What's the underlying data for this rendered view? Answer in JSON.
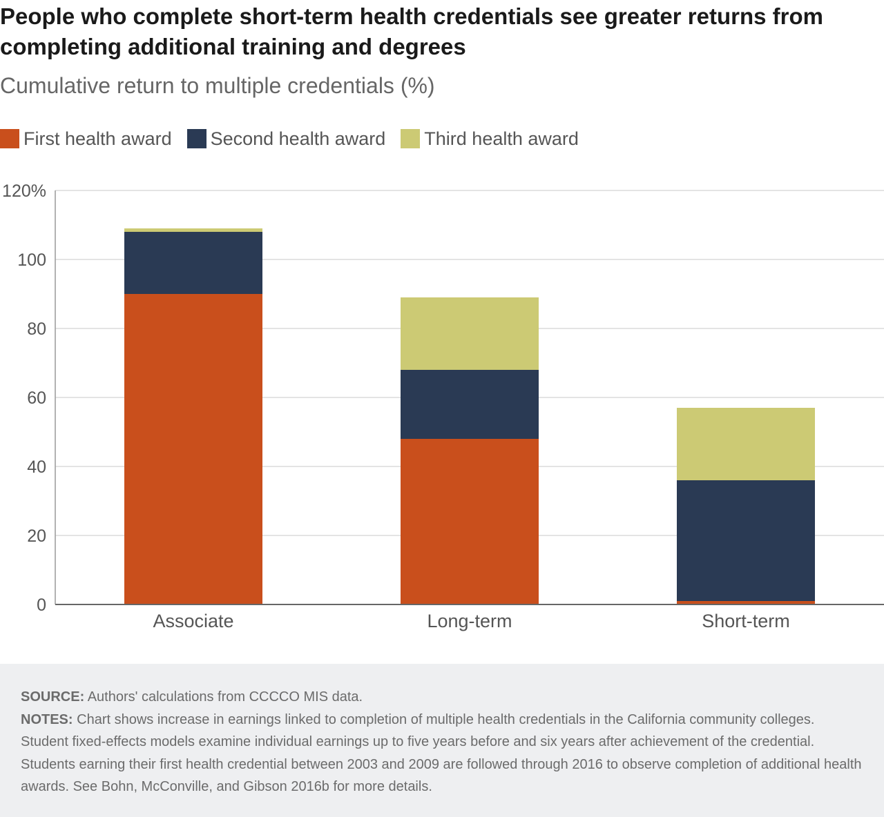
{
  "header": {
    "title": "People who complete short-term health credentials see greater returns from completing additional training and degrees",
    "subtitle": "Cumulative return to multiple credentials (%)"
  },
  "chart_data": {
    "type": "bar",
    "stacked": true,
    "categories": [
      "Associate",
      "Long-term",
      "Short-term"
    ],
    "series": [
      {
        "name": "First health award",
        "color": "#c94f1c",
        "values": [
          90,
          48,
          1
        ]
      },
      {
        "name": "Second health award",
        "color": "#2a3a54",
        "values": [
          18,
          20,
          35
        ]
      },
      {
        "name": "Third health award",
        "color": "#ccca74",
        "values": [
          1,
          21,
          21
        ]
      }
    ],
    "ylim": [
      0,
      120
    ],
    "yticks": [
      0,
      20,
      40,
      60,
      80,
      100,
      120
    ],
    "ytick_labels": [
      "0",
      "20",
      "40",
      "60",
      "80",
      "100",
      "120%"
    ],
    "grid": true,
    "legend_position": "top-left"
  },
  "footer": {
    "source_label": "SOURCE:",
    "source_text": "Authors' calculations from CCCCO MIS data.",
    "notes_label": "NOTES:",
    "notes_text": "Chart shows increase in earnings linked to completion of multiple health credentials in the California community colleges. Student fixed-effects models examine individual earnings up to five years before and six years after achievement of the credential. Students earning their first health credential between 2003 and 2009 are followed through 2016 to observe completion of additional health awards. See Bohn, McConville, and Gibson 2016b for more details."
  }
}
